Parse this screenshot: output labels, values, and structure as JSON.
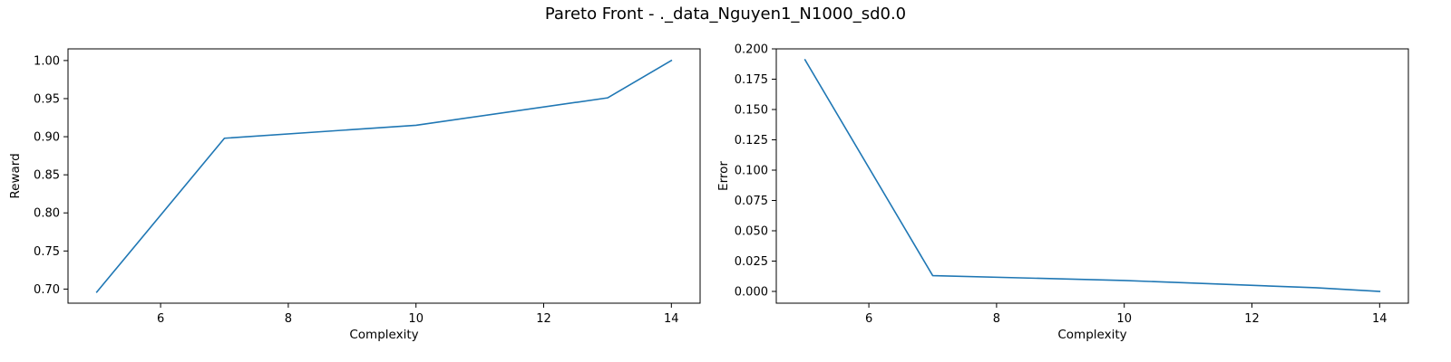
{
  "figure": {
    "title": "Pareto Front - ._data_Nguyen1_N1000_sd0.0"
  },
  "colors": {
    "series": "#1f77b4",
    "axes": "#000000",
    "background": "#ffffff"
  },
  "chart_data": [
    {
      "type": "line",
      "xlabel": "Complexity",
      "ylabel": "Reward",
      "xlim": [
        4.55,
        14.45
      ],
      "ylim": [
        0.6815,
        1.0153
      ],
      "xticks": [
        6,
        8,
        10,
        12,
        14
      ],
      "xtick_labels": [
        "6",
        "8",
        "10",
        "12",
        "14"
      ],
      "yticks": [
        0.7,
        0.75,
        0.8,
        0.85,
        0.9,
        0.95,
        1.0
      ],
      "ytick_labels": [
        "0.70",
        "0.75",
        "0.80",
        "0.85",
        "0.90",
        "0.95",
        "1.00"
      ],
      "grid": false,
      "series": [
        {
          "x": [
            5,
            7,
            10,
            13,
            14
          ],
          "y": [
            0.696,
            0.898,
            0.915,
            0.951,
            1.0
          ]
        }
      ]
    },
    {
      "type": "line",
      "xlabel": "Complexity",
      "ylabel": "Error",
      "xlim": [
        4.55,
        14.45
      ],
      "ylim": [
        -0.0097,
        0.2
      ],
      "xticks": [
        6,
        8,
        10,
        12,
        14
      ],
      "xtick_labels": [
        "6",
        "8",
        "10",
        "12",
        "14"
      ],
      "yticks": [
        0.0,
        0.025,
        0.05,
        0.075,
        0.1,
        0.125,
        0.15,
        0.175,
        0.2
      ],
      "ytick_labels": [
        "0.000",
        "0.025",
        "0.050",
        "0.075",
        "0.100",
        "0.125",
        "0.150",
        "0.175",
        "0.200"
      ],
      "grid": false,
      "series": [
        {
          "x": [
            5,
            7,
            10,
            13,
            14
          ],
          "y": [
            0.191,
            0.013,
            0.009,
            0.003,
            0.0
          ]
        }
      ]
    }
  ]
}
